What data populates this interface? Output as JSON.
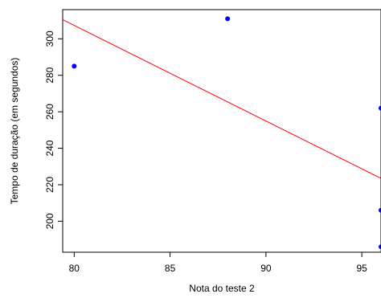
{
  "chart_data": {
    "type": "scatter",
    "title": "",
    "xlabel": "Nota do teste 2",
    "ylabel": "Tempo de duração (em segundos)",
    "xlim": [
      79.4,
      96.0
    ],
    "ylim": [
      183,
      316
    ],
    "x_ticks": [
      80,
      85,
      90,
      95
    ],
    "y_ticks": [
      200,
      220,
      240,
      260,
      280,
      300
    ],
    "grid": false,
    "series": [
      {
        "color": "#0000ff",
        "points": [
          {
            "x": 80,
            "y": 285
          },
          {
            "x": 88,
            "y": 311
          },
          {
            "x": 96,
            "y": 262
          },
          {
            "x": 96,
            "y": 206
          },
          {
            "x": 96,
            "y": 186
          }
        ]
      }
    ],
    "regression_line": {
      "color": "#ff0000",
      "from": {
        "x": 79.4,
        "y": 310.5
      },
      "to": {
        "x": 96.0,
        "y": 223.5
      }
    }
  }
}
